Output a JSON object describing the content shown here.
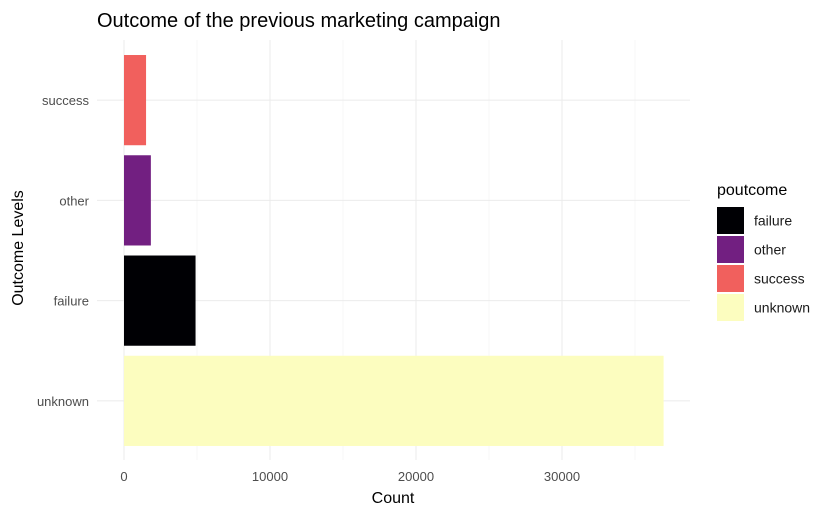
{
  "chart_data": {
    "type": "bar",
    "orientation": "horizontal",
    "title": "Outcome of the previous marketing campaign",
    "xlabel": "Count",
    "ylabel": "Outcome Levels",
    "categories": [
      "unknown",
      "failure",
      "other",
      "success"
    ],
    "values": [
      36959,
      4901,
      1840,
      1511
    ],
    "colors": [
      "#FCFDBF",
      "#000004",
      "#721F81",
      "#F1605D"
    ],
    "xlim": [
      0,
      36959
    ],
    "xticks": [
      0,
      10000,
      20000,
      30000
    ],
    "grid": true,
    "legend": {
      "title": "poutcome",
      "position": "right",
      "items": [
        {
          "label": "failure",
          "color": "#000004"
        },
        {
          "label": "other",
          "color": "#721F81"
        },
        {
          "label": "success",
          "color": "#F1605D"
        },
        {
          "label": "unknown",
          "color": "#FCFDBF"
        }
      ]
    }
  }
}
